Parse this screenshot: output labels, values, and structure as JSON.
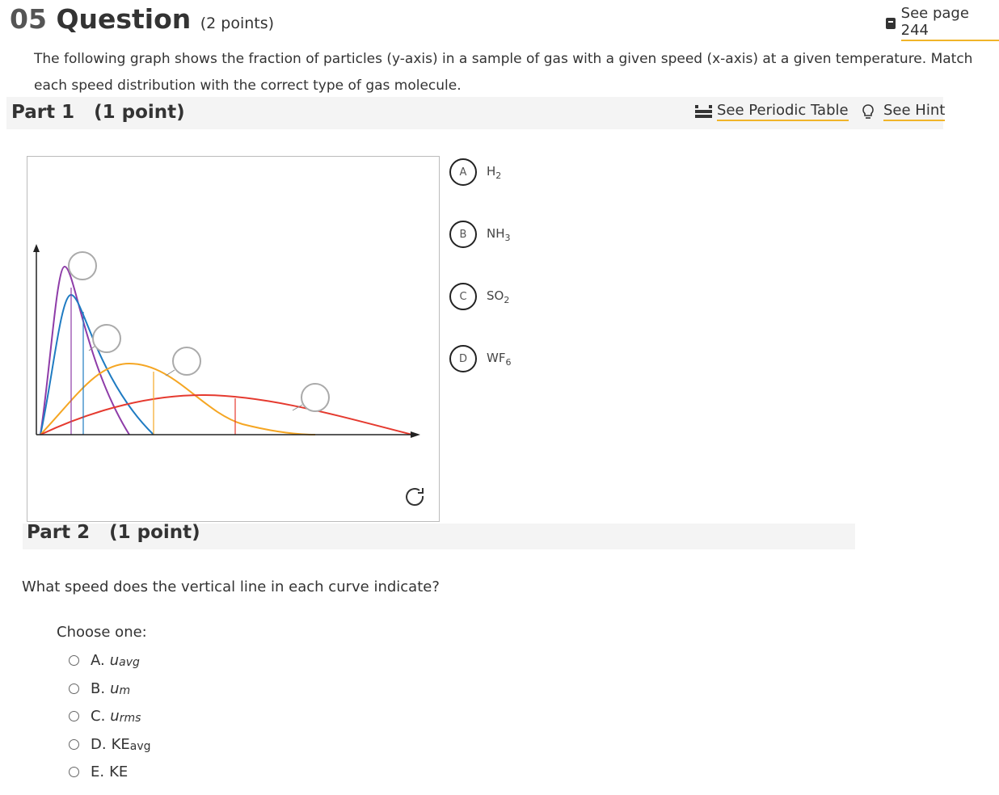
{
  "header": {
    "number": "05",
    "title": "Question",
    "points": "(2 points)",
    "page_link": "See page 244"
  },
  "prompt": "The following graph shows the fraction of particles (y-axis) in a sample of gas with a given speed (x-axis) at a given temperature.  Match each speed distribution with the correct type of gas molecule.",
  "part1": {
    "label": "Part 1",
    "points": "(1 point)",
    "periodic_table": "See Periodic Table",
    "hint": "See Hint",
    "options": [
      {
        "letter": "A",
        "formula": "H",
        "sub": "2"
      },
      {
        "letter": "B",
        "formula": "NH",
        "sub": "3"
      },
      {
        "letter": "C",
        "formula": "SO",
        "sub": "2"
      },
      {
        "letter": "D",
        "formula": "WF",
        "sub": "6"
      }
    ]
  },
  "part2": {
    "label": "Part 2",
    "points": "(1 point)",
    "question": "What speed does the vertical line in each curve indicate?",
    "choose": "Choose one:",
    "choices": [
      {
        "letter": "A.",
        "text": "u",
        "sub": "avg"
      },
      {
        "letter": "B.",
        "text": "u",
        "sub": "m"
      },
      {
        "letter": "C.",
        "text": "u",
        "sub": "rms"
      },
      {
        "letter": "D.",
        "text": "KE",
        "sub": "avg"
      },
      {
        "letter": "E.",
        "text": "KE"
      }
    ]
  }
}
